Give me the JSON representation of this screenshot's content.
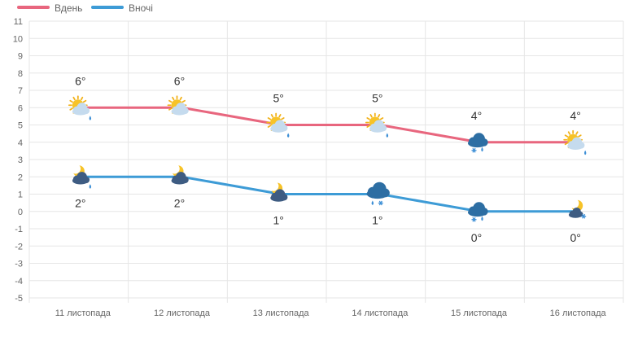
{
  "chart_data": {
    "type": "line",
    "categories": [
      "11 листопада",
      "12 листопада",
      "13 листопада",
      "14 листопада",
      "15 листопада",
      "16 листопада"
    ],
    "ylim": [
      -5,
      11
    ],
    "yticks": [
      11,
      10,
      9,
      8,
      7,
      6,
      5,
      4,
      3,
      2,
      1,
      0,
      -1,
      -2,
      -3,
      -4,
      -5
    ],
    "grid": true,
    "legend_position": "top-left",
    "series": [
      {
        "name": "Вдень",
        "color": "#e8667e",
        "values": [
          6,
          6,
          5,
          5,
          4,
          4
        ],
        "labels": [
          "6°",
          "6°",
          "5°",
          "5°",
          "4°",
          "4°"
        ],
        "icons": [
          "sun-cloud-rain-icon",
          "sun-cloud-icon",
          "sun-cloud-rain-icon",
          "sun-cloud-rain-icon",
          "cloud-snow-icon",
          "sun-cloud-rain-icon"
        ]
      },
      {
        "name": "Вночі",
        "color": "#3d9bd6",
        "values": [
          2,
          2,
          1,
          1,
          0,
          0
        ],
        "labels": [
          "2°",
          "2°",
          "1°",
          "1°",
          "0°",
          "0°"
        ],
        "icons": [
          "moon-cloud-rain-icon",
          "moon-cloud-icon",
          "moon-cloud-icon",
          "cloud-rain-snow-icon",
          "cloud-snow-icon",
          "moon-cloud-snow-icon"
        ]
      }
    ]
  }
}
